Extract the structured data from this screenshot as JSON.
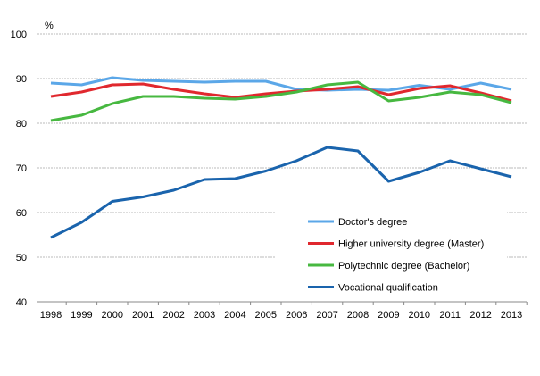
{
  "chart_data": {
    "type": "line",
    "unit_label": "%",
    "x": [
      "1998",
      "1999",
      "2000",
      "2001",
      "2002",
      "2003",
      "2004",
      "2005",
      "2006",
      "2007",
      "2008",
      "2009",
      "2010",
      "2011",
      "2012",
      "2013"
    ],
    "ylim": [
      40,
      100
    ],
    "yticks": [
      40,
      50,
      60,
      70,
      80,
      90,
      100
    ],
    "grid": true,
    "legend_placement": "bottom-right",
    "series": [
      {
        "name": "Doctor's degree",
        "color": "#5ba7e8",
        "values": [
          89.0,
          88.6,
          90.2,
          89.6,
          89.4,
          89.2,
          89.4,
          89.4,
          87.6,
          87.4,
          87.6,
          87.4,
          88.5,
          87.6,
          89.0,
          87.6
        ]
      },
      {
        "name": "Higher university degree (Master)",
        "color": "#e0282e",
        "values": [
          86.0,
          87.0,
          88.6,
          88.8,
          87.6,
          86.6,
          85.8,
          86.6,
          87.2,
          87.6,
          88.2,
          86.4,
          87.8,
          88.4,
          86.8,
          85.0
        ]
      },
      {
        "name": "Polytechnic degree (Bachelor)",
        "color": "#47b840",
        "values": [
          80.6,
          81.8,
          84.4,
          86.0,
          86.0,
          85.6,
          85.4,
          86.0,
          87.0,
          88.6,
          89.2,
          85.0,
          85.8,
          87.0,
          86.4,
          84.6
        ]
      },
      {
        "name": "Vocational qualification",
        "color": "#1a64ad",
        "values": [
          54.4,
          57.8,
          62.5,
          63.5,
          65.0,
          67.4,
          67.6,
          69.3,
          71.6,
          74.6,
          73.8,
          67.0,
          69.0,
          71.6,
          69.8,
          68.0
        ]
      }
    ]
  }
}
